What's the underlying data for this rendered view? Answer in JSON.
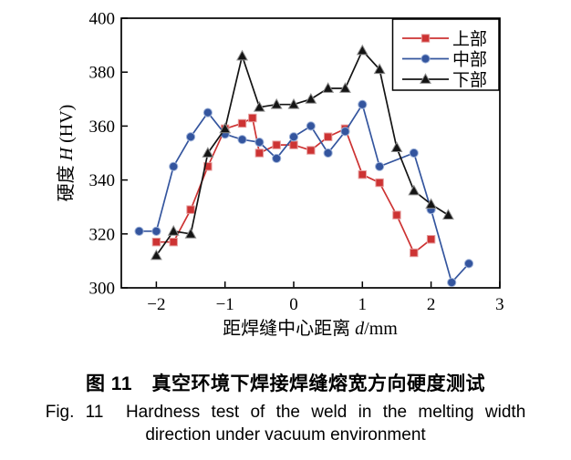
{
  "figure": {
    "caption_zh": "图 11　真空环境下焊接焊缝熔宽方向硬度测试",
    "caption_en_line1": "Fig. 11  Hardness test of the weld in the melting width",
    "caption_en_line2": "direction under vacuum environment"
  },
  "chart_data": {
    "type": "line",
    "title": "",
    "xlabel_parts": {
      "prefix": "距焊缝中心距离 ",
      "italic": "d",
      "suffix": "/mm"
    },
    "ylabel_parts": {
      "prefix": "硬度 ",
      "italic": "H",
      "suffix": " (HV)"
    },
    "xlim": [
      -2.51,
      3
    ],
    "ylim": [
      300,
      400
    ],
    "x_ticks": [
      -2,
      -1,
      0,
      1,
      2,
      3
    ],
    "y_ticks": [
      300,
      320,
      340,
      360,
      380,
      400
    ],
    "grid": false,
    "legend_position": "top-right-inside-box",
    "axis_color": "#000000",
    "series": [
      {
        "name": "上部",
        "marker": "square",
        "color": "#cd3333",
        "edge": "#e59c9c",
        "points": [
          [
            -2,
            317
          ],
          [
            -1.75,
            317
          ],
          [
            -1.5,
            329
          ],
          [
            -1.25,
            345
          ],
          [
            -1,
            359
          ],
          [
            -0.75,
            361
          ],
          [
            -0.6,
            363
          ],
          [
            -0.5,
            350
          ],
          [
            -0.25,
            353
          ],
          [
            0,
            353
          ],
          [
            0.25,
            351
          ],
          [
            0.5,
            356
          ],
          [
            0.75,
            359
          ],
          [
            1,
            342
          ],
          [
            1.25,
            339
          ],
          [
            1.5,
            327
          ],
          [
            1.75,
            313
          ],
          [
            2,
            318
          ]
        ]
      },
      {
        "name": "中部",
        "marker": "circle",
        "color": "#34559e",
        "edge": "#9fb3d9",
        "points": [
          [
            -2.25,
            321
          ],
          [
            -2,
            321
          ],
          [
            -1.75,
            345
          ],
          [
            -1.5,
            356
          ],
          [
            -1.25,
            365
          ],
          [
            -1,
            357
          ],
          [
            -0.75,
            355
          ],
          [
            -0.5,
            354
          ],
          [
            -0.25,
            348
          ],
          [
            0,
            356
          ],
          [
            0.25,
            360
          ],
          [
            0.5,
            350
          ],
          [
            0.75,
            358
          ],
          [
            1,
            368
          ],
          [
            1.25,
            345
          ],
          [
            1.75,
            350
          ],
          [
            2,
            329
          ],
          [
            2.3,
            302
          ],
          [
            2.55,
            309
          ]
        ]
      },
      {
        "name": "下部",
        "marker": "triangle",
        "color": "#141414",
        "edge": "#8d8d8d",
        "points": [
          [
            -2,
            312
          ],
          [
            -1.75,
            321
          ],
          [
            -1.5,
            320
          ],
          [
            -1.25,
            350
          ],
          [
            -1,
            359
          ],
          [
            -0.75,
            386
          ],
          [
            -0.5,
            367
          ],
          [
            -0.25,
            368
          ],
          [
            0,
            368
          ],
          [
            0.25,
            370
          ],
          [
            0.5,
            374
          ],
          [
            0.75,
            374
          ],
          [
            1,
            388
          ],
          [
            1.25,
            381
          ],
          [
            1.5,
            352
          ],
          [
            1.75,
            336
          ],
          [
            2,
            331
          ],
          [
            2.25,
            327
          ]
        ]
      }
    ]
  }
}
